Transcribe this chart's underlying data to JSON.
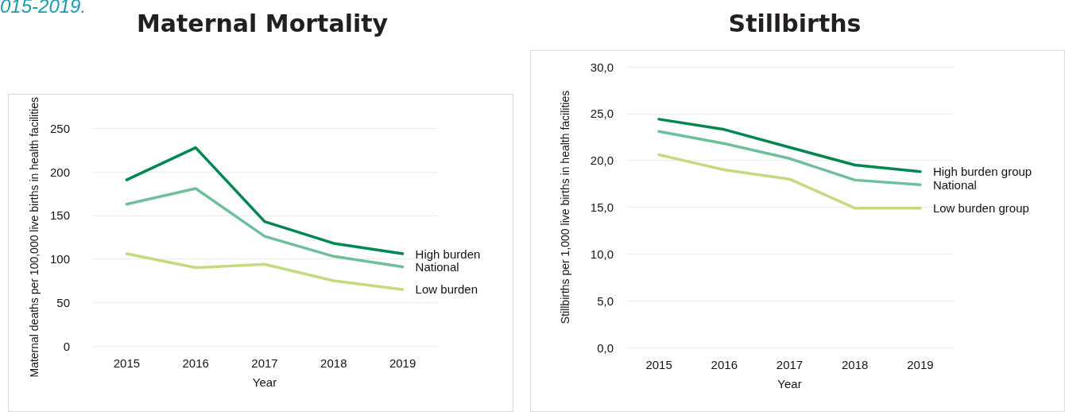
{
  "chart_data": [
    {
      "type": "line",
      "title": "Maternal Mortality",
      "xlabel": "Year",
      "ylabel": "Maternal deaths per 100,000 live births in health facilities",
      "annotations": [
        "015-2019."
      ],
      "categories": [
        "2015",
        "2016",
        "2017",
        "2018",
        "2019"
      ],
      "ylim": [
        0,
        250
      ],
      "yticks": [
        0,
        50,
        100,
        150,
        200,
        250
      ],
      "grid": "y",
      "legend": false,
      "marker": "none",
      "line_style": "solid",
      "series": [
        {
          "name": "High burden",
          "color": "#00874f",
          "values": [
            191,
            228,
            143,
            118,
            106
          ]
        },
        {
          "name": "National",
          "color": "#6fbf9b",
          "values": [
            163,
            181,
            126,
            103,
            91
          ]
        },
        {
          "name": "Low burden",
          "color": "#c3da7e",
          "values": [
            106,
            90,
            94,
            75,
            65
          ]
        }
      ]
    },
    {
      "type": "line",
      "title": "Stillbirths",
      "xlabel": "Year",
      "ylabel": "Stillbirths per 1,000 live births in health facilities",
      "categories": [
        "2015",
        "2016",
        "2017",
        "2018",
        "2019"
      ],
      "ylim": [
        0,
        30
      ],
      "yticks": [
        {
          "value": 0,
          "label": "0,0"
        },
        {
          "value": 5,
          "label": "5,0"
        },
        {
          "value": 10,
          "label": "10,0"
        },
        {
          "value": 15,
          "label": "15,0"
        },
        {
          "value": 20,
          "label": "20,0"
        },
        {
          "value": 25,
          "label": "25,0"
        },
        {
          "value": 30,
          "label": "30,0"
        }
      ],
      "grid": "y",
      "legend": false,
      "marker": "none",
      "line_style": "solid",
      "series": [
        {
          "name": "High burden group",
          "color": "#00874f",
          "values": [
            24.4,
            23.3,
            21.4,
            19.5,
            18.8
          ]
        },
        {
          "name": "National",
          "color": "#6fbf9b",
          "values": [
            23.1,
            21.8,
            20.2,
            17.9,
            17.4
          ]
        },
        {
          "name": "Low burden group",
          "color": "#c3da7e",
          "values": [
            20.6,
            19.0,
            18.0,
            14.9,
            14.9
          ]
        }
      ]
    }
  ]
}
